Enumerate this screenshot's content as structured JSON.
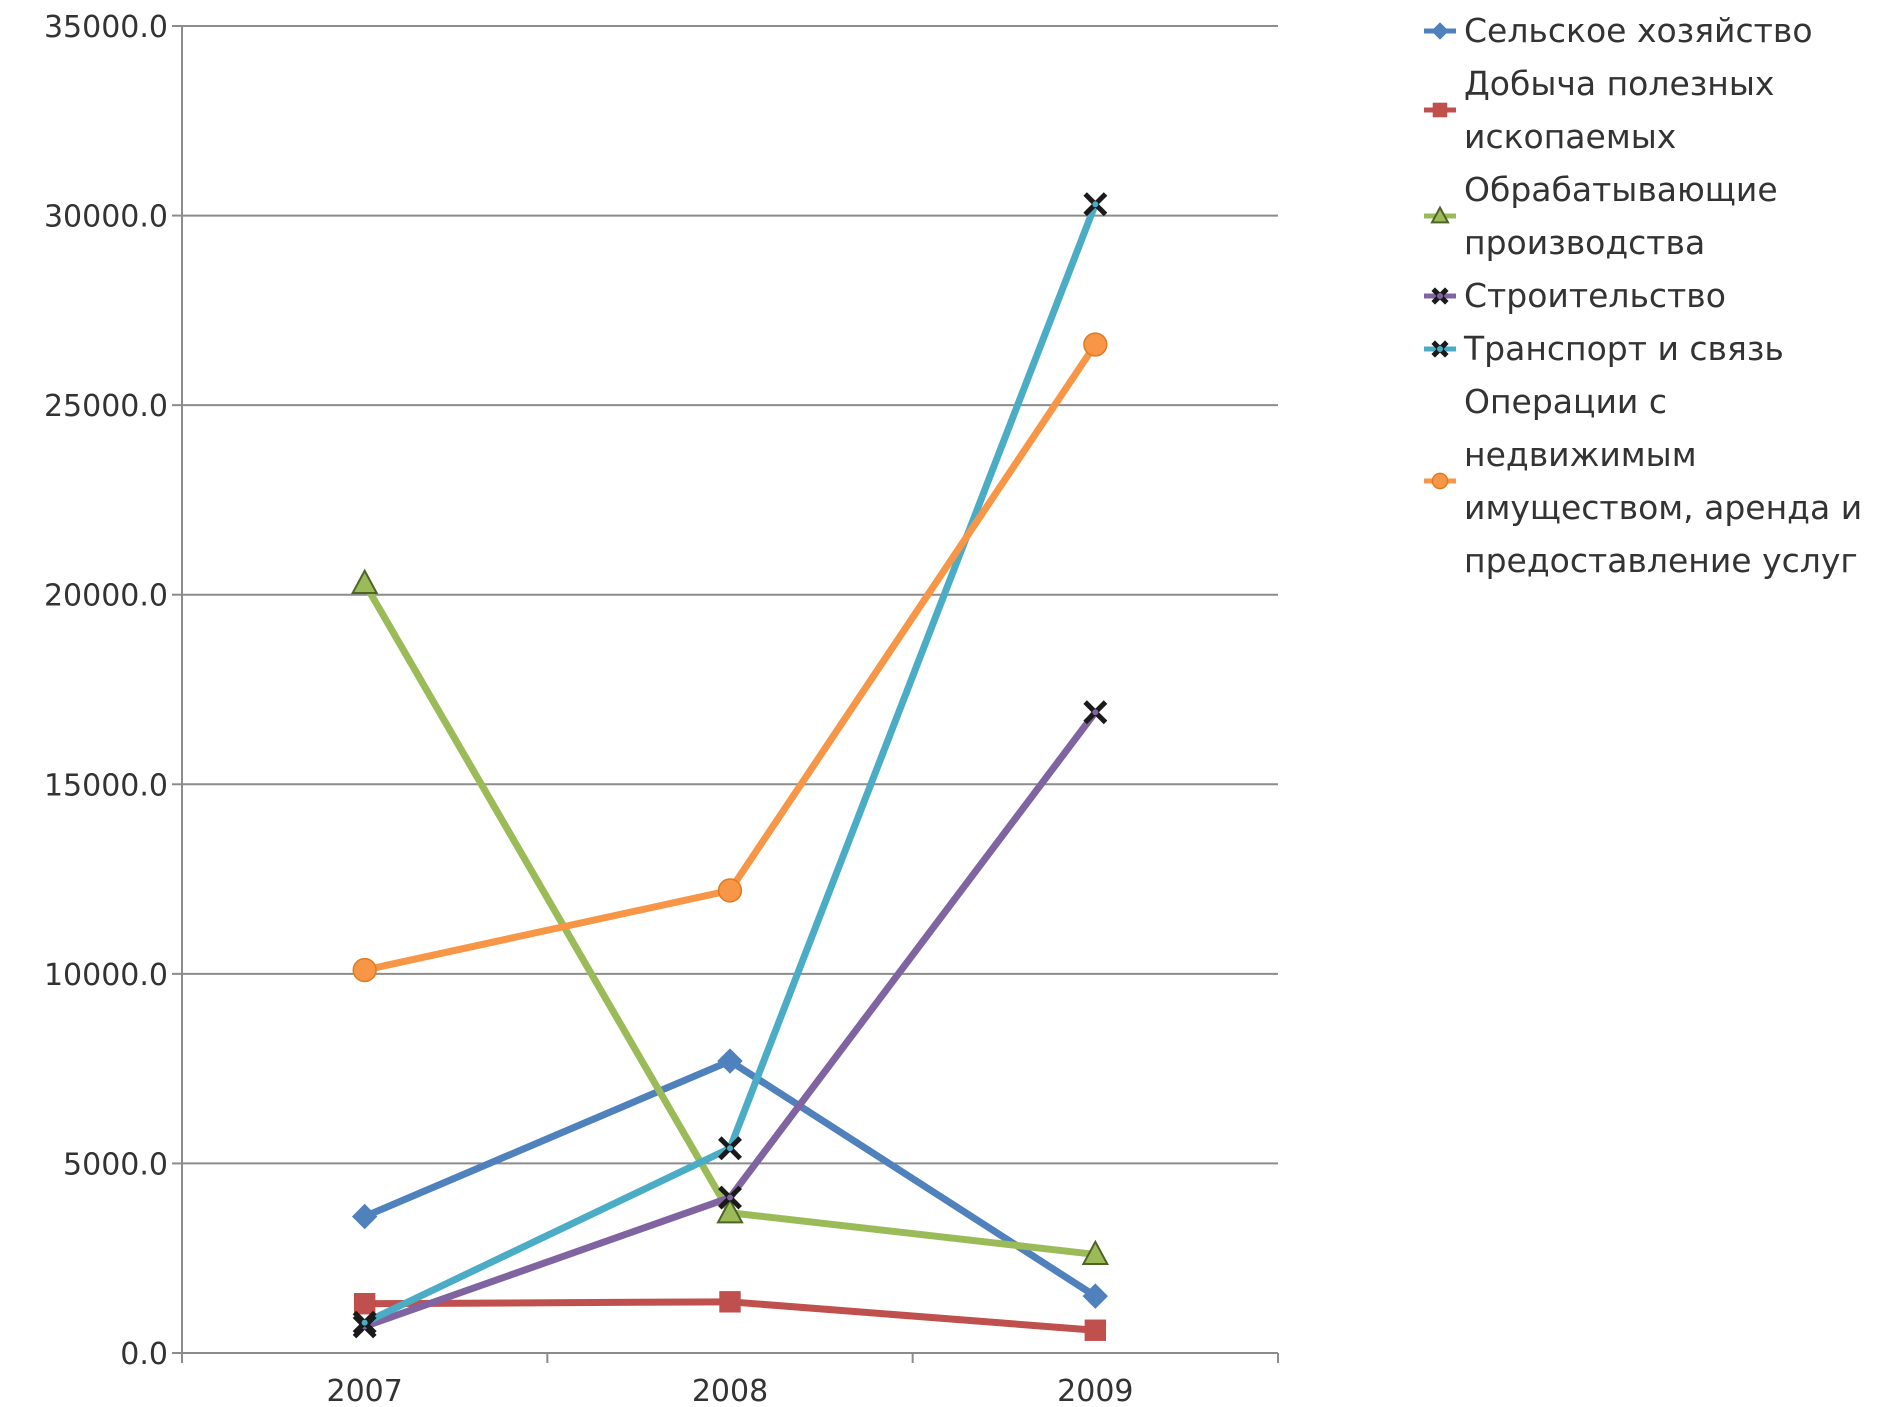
{
  "chart_data": {
    "type": "line",
    "title": "",
    "xlabel": "",
    "ylabel": "",
    "categories": [
      "2007",
      "2008",
      "2009"
    ],
    "ylim": [
      0,
      35000
    ],
    "yticks": [
      "0.0",
      "5000.0",
      "10000.0",
      "15000.0",
      "20000.0",
      "25000.0",
      "30000.0",
      "35000.0"
    ],
    "grid": true,
    "legend_position": "right",
    "series": [
      {
        "name": "Сельское хозяйство",
        "values": [
          3600,
          7700,
          1500
        ],
        "color": "#4F81BD",
        "marker": "diamond"
      },
      {
        "name": "Добыча полезных ископаемых",
        "values": [
          1300,
          1350,
          600
        ],
        "color": "#C0504D",
        "marker": "square"
      },
      {
        "name": "Обрабатывающие производства",
        "values": [
          20300,
          3700,
          2600
        ],
        "color": "#9BBB59",
        "marker": "triangle"
      },
      {
        "name": "Строительство",
        "values": [
          700,
          4100,
          16900
        ],
        "color": "#8064A2",
        "marker": "x"
      },
      {
        "name": "Транспорт и связь",
        "values": [
          800,
          5400,
          30300
        ],
        "color": "#4BACC6",
        "marker": "x"
      },
      {
        "name": "Операции с недвижимым имуществом, аренда и предоставление услуг",
        "values": [
          10100,
          12200,
          26600
        ],
        "color": "#F79646",
        "marker": "circle"
      }
    ]
  }
}
